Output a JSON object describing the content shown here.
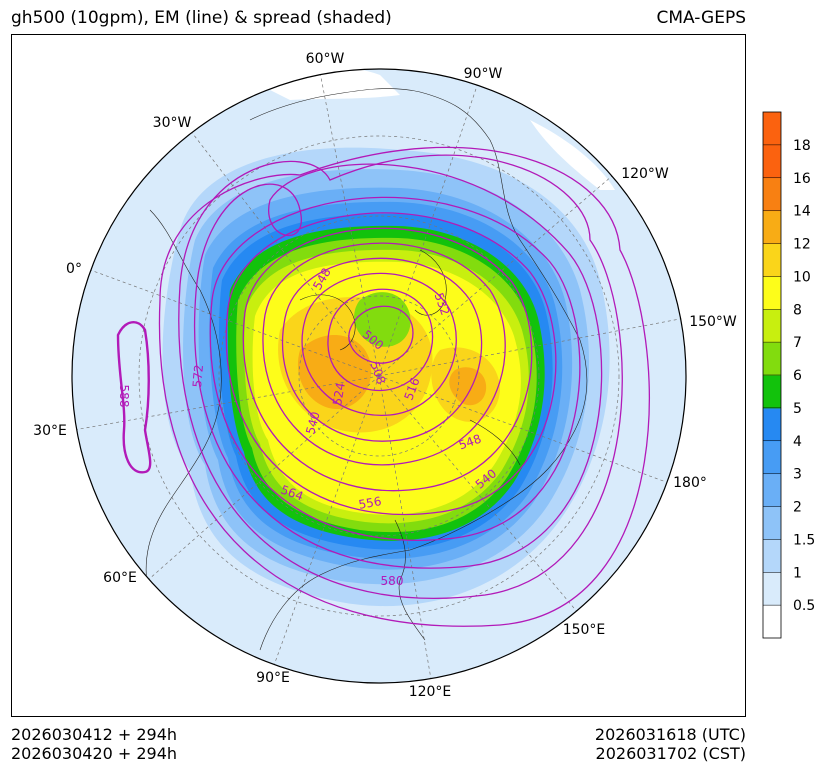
{
  "header": {
    "title_left": "gh500 (10gpm), EM (line) & spread (shaded)",
    "title_right": "CMA-GEPS"
  },
  "footer": {
    "init_utc": "2026030412 + 294h",
    "init_cst": "2026030420 + 294h",
    "valid_utc": "2026031618 (UTC)",
    "valid_cst": "2026031702 (CST)"
  },
  "map": {
    "projection": "north-polar-stereographic",
    "longitude_labels": [
      "60°W",
      "90°W",
      "120°W",
      "150°W",
      "180°",
      "150°E",
      "120°E",
      "90°E",
      "60°E",
      "30°E",
      "0°",
      "30°W"
    ],
    "contour_labels": [
      "548",
      "532",
      "500",
      "508",
      "516",
      "524",
      "540",
      "572",
      "588",
      "548",
      "540",
      "564",
      "556",
      "580"
    ],
    "colors": {
      "ocean_land_background": "#d9ebfb",
      "contour_line": "#b21ab8"
    }
  },
  "colorbar": {
    "ticks": [
      "0.5",
      "1",
      "1.5",
      "2",
      "3",
      "4",
      "5",
      "6",
      "7",
      "8",
      "10",
      "12",
      "14",
      "16",
      "18"
    ],
    "bin_colors": [
      "#ffffff",
      "#d9ebfb",
      "#b4d7fa",
      "#8ec3f8",
      "#6aaff6",
      "#479cf4",
      "#2689f2",
      "#12c20c",
      "#82dc0e",
      "#c8ef0f",
      "#fdfd1a",
      "#fad51a",
      "#f8ac15",
      "#f88012",
      "#fb620f"
    ]
  }
}
